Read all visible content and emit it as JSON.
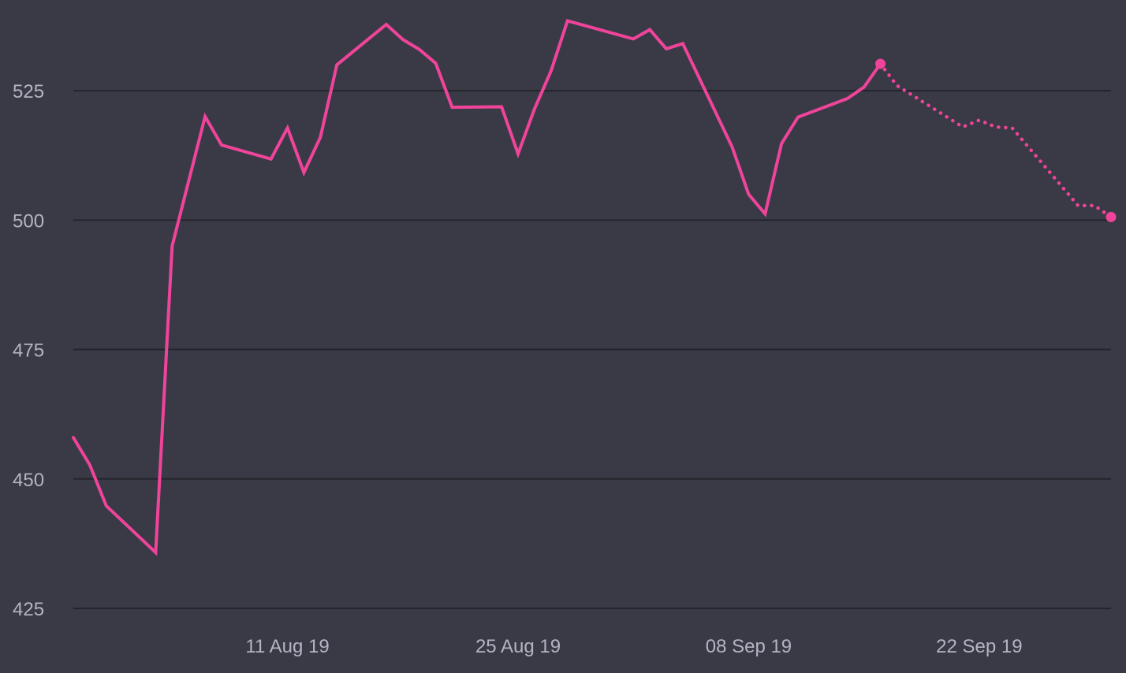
{
  "chart_data": {
    "type": "line",
    "title": "",
    "xlabel": "",
    "ylabel": "",
    "x_axis_type": "date",
    "ylim": [
      425,
      541
    ],
    "xlim": [
      "2019-07-29",
      "2019-09-30"
    ],
    "grid": {
      "horizontal": true,
      "vertical": false
    },
    "yticks": [
      425,
      450,
      475,
      500,
      525
    ],
    "xticks": [
      {
        "date": "2019-08-11",
        "label": "11 Aug 19"
      },
      {
        "date": "2019-08-25",
        "label": "25 Aug 19"
      },
      {
        "date": "2019-09-08",
        "label": "08 Sep 19"
      },
      {
        "date": "2019-09-22",
        "label": "22 Sep 19"
      }
    ],
    "colors": {
      "background": "#3a3a46",
      "gridline": "#24242c",
      "line": "#f0449a",
      "tick_text": "#b4b4c2"
    },
    "series": [
      {
        "style": "solid",
        "end_marker": true,
        "points": [
          [
            "2019-07-29",
            458
          ],
          [
            "2019-07-30",
            452.7
          ],
          [
            "2019-07-31",
            444.8
          ],
          [
            "2019-08-03",
            435.8
          ],
          [
            "2019-08-04",
            495
          ],
          [
            "2019-08-06",
            520
          ],
          [
            "2019-08-07",
            514.5
          ],
          [
            "2019-08-10",
            511.8
          ],
          [
            "2019-08-11",
            517.8
          ],
          [
            "2019-08-12",
            509.2
          ],
          [
            "2019-08-13",
            516
          ],
          [
            "2019-08-14",
            530
          ],
          [
            "2019-08-17",
            537.8
          ],
          [
            "2019-08-18",
            534.9
          ],
          [
            "2019-08-19",
            533
          ],
          [
            "2019-08-20",
            530.3
          ],
          [
            "2019-08-21",
            521.8
          ],
          [
            "2019-08-24",
            521.9
          ],
          [
            "2019-08-25",
            512.8
          ],
          [
            "2019-08-26",
            521.5
          ],
          [
            "2019-08-27",
            528.8
          ],
          [
            "2019-08-28",
            538.5
          ],
          [
            "2019-09-01",
            535
          ],
          [
            "2019-09-02",
            536.8
          ],
          [
            "2019-09-03",
            533.1
          ],
          [
            "2019-09-04",
            534.1
          ],
          [
            "2019-09-07",
            514.1
          ],
          [
            "2019-09-08",
            505
          ],
          [
            "2019-09-09",
            501.2
          ],
          [
            "2019-09-10",
            514.8
          ],
          [
            "2019-09-11",
            519.9
          ],
          [
            "2019-09-14",
            523.5
          ],
          [
            "2019-09-15",
            525.7
          ],
          [
            "2019-09-16",
            530.2
          ]
        ]
      },
      {
        "style": "dotted",
        "end_marker": true,
        "points": [
          [
            "2019-09-16",
            530.2
          ],
          [
            "2019-09-17",
            526
          ],
          [
            "2019-09-21",
            518
          ],
          [
            "2019-09-22",
            519.3
          ],
          [
            "2019-09-23",
            518
          ],
          [
            "2019-09-24",
            517.8
          ],
          [
            "2019-09-28",
            502.8
          ],
          [
            "2019-09-29",
            502.8
          ],
          [
            "2019-09-30",
            500.6
          ]
        ]
      }
    ]
  }
}
